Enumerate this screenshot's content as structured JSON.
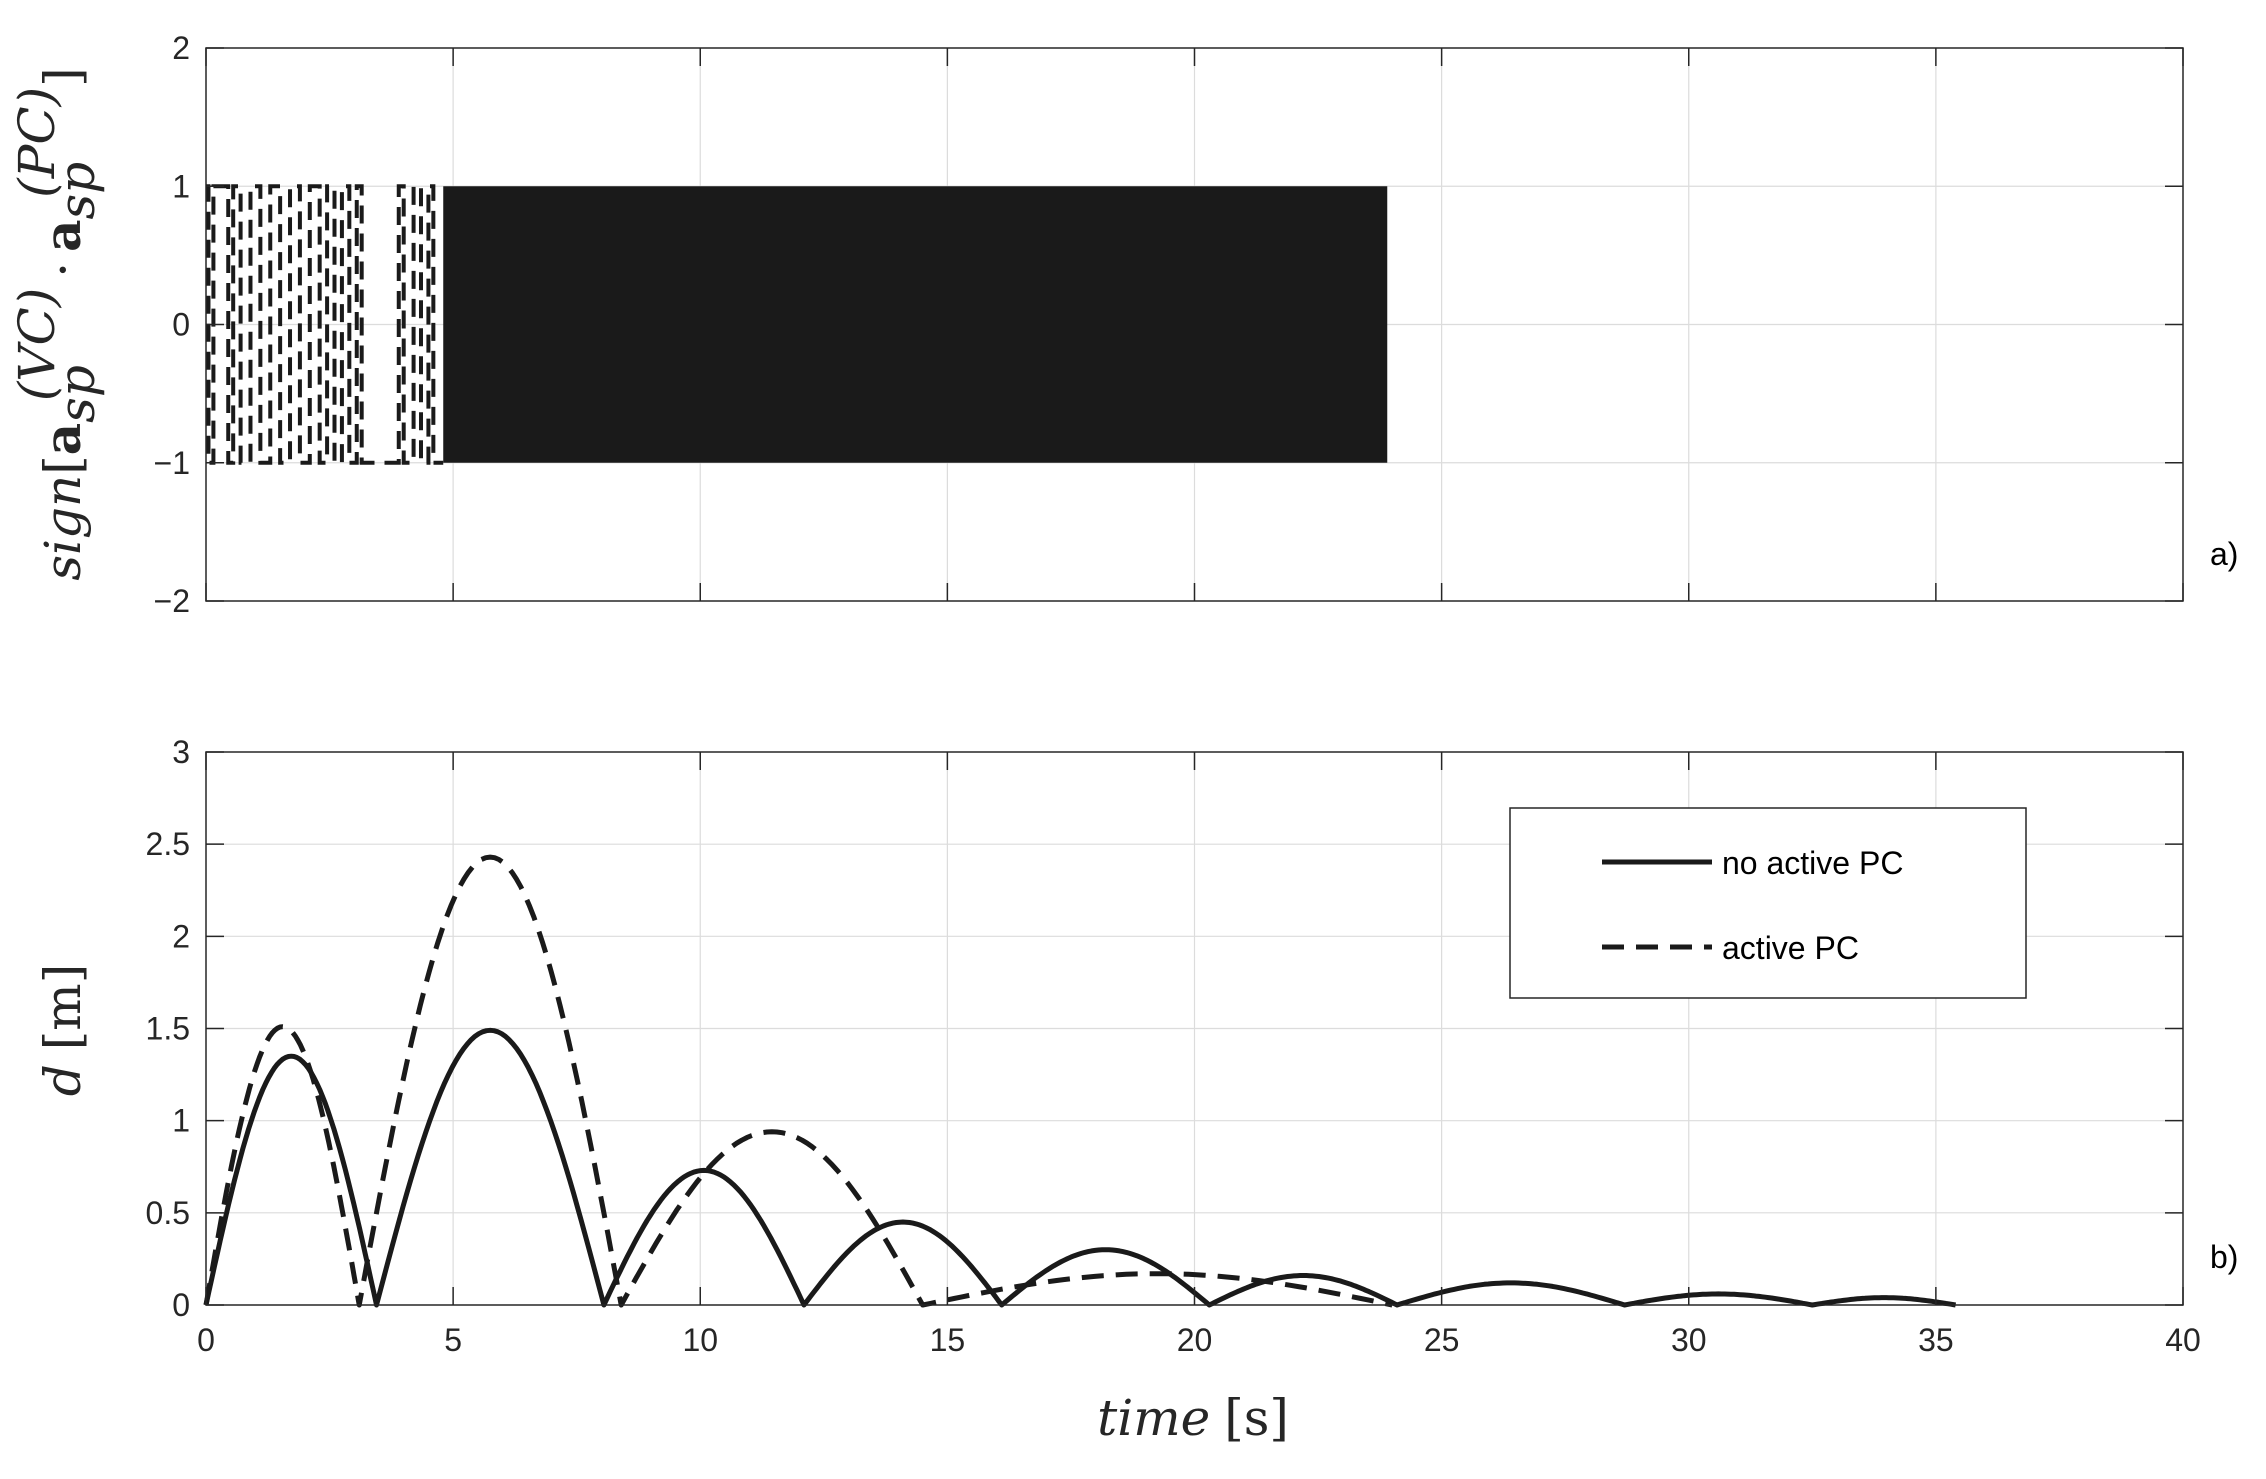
{
  "chart_data": [
    {
      "type": "line",
      "panel_label": "a)",
      "ylabel_parts": {
        "prefix": "sign",
        "open": "[",
        "a1": "a",
        "sub1": "sp",
        "sup1": "(VC)",
        "dot": "·",
        "a2": "a",
        "sub2": "sp",
        "sup2": "(PC)",
        "close": "]"
      },
      "xlim": [
        0,
        40
      ],
      "ylim": [
        -2,
        2
      ],
      "xticks": [
        0,
        5,
        10,
        15,
        20,
        25,
        30,
        35,
        40
      ],
      "yticks": [
        -2,
        -1,
        0,
        1,
        2
      ],
      "ytick_labels": [
        "−2",
        "−1",
        "0",
        "1",
        "2"
      ],
      "grid": true,
      "series": [
        {
          "style": "solid",
          "description_values": "alternates rapidly between -1 and 1",
          "solid_band": [
            4.8,
            23.9
          ],
          "values_range": [
            -1,
            1
          ]
        },
        {
          "style": "dashed",
          "switch_times": [
            0.05,
            0.15,
            0.45,
            0.55,
            0.7,
            0.9,
            1.1,
            1.3,
            1.5,
            1.7,
            1.9,
            2.1,
            2.3,
            2.45,
            2.6,
            2.75,
            2.9,
            3.05,
            3.15,
            3.9,
            4.0,
            4.2,
            4.35,
            4.5,
            4.6
          ],
          "values_range": [
            -1,
            1
          ]
        }
      ]
    },
    {
      "type": "line",
      "panel_label": "b)",
      "ylabel_parts": {
        "var": "d",
        "unit": "[m]"
      },
      "xlabel_parts": {
        "var": "time",
        "unit": "[s]"
      },
      "xlim": [
        0,
        40
      ],
      "ylim": [
        0,
        3
      ],
      "xticks": [
        0,
        5,
        10,
        15,
        20,
        25,
        30,
        35,
        40
      ],
      "yticks": [
        0,
        0.5,
        1,
        1.5,
        2,
        2.5,
        3
      ],
      "ytick_labels": [
        "0",
        "0.5",
        "1",
        "1.5",
        "2",
        "2.5",
        "3"
      ],
      "xtick_labels": [
        "0",
        "5",
        "10",
        "15",
        "20",
        "25",
        "30",
        "35",
        "40"
      ],
      "grid": true,
      "legend_position": "top-right",
      "series": [
        {
          "name": "no active PC",
          "style": "solid",
          "arches": [
            [
              0,
              3.45,
              1.35
            ],
            [
              3.45,
              8.05,
              1.49
            ],
            [
              8.05,
              12.1,
              0.73
            ],
            [
              12.1,
              16.1,
              0.45
            ],
            [
              16.1,
              20.3,
              0.3
            ],
            [
              20.3,
              24.1,
              0.16
            ],
            [
              24.1,
              28.7,
              0.12
            ],
            [
              28.7,
              32.5,
              0.06
            ],
            [
              32.5,
              35.4,
              0.04
            ]
          ]
        },
        {
          "name": "active PC",
          "style": "dashed",
          "arches": [
            [
              0,
              3.1,
              1.51
            ],
            [
              3.1,
              8.4,
              2.43
            ],
            [
              8.4,
              14.5,
              0.94
            ],
            [
              14.5,
              24.0,
              0.17
            ]
          ]
        }
      ]
    }
  ]
}
